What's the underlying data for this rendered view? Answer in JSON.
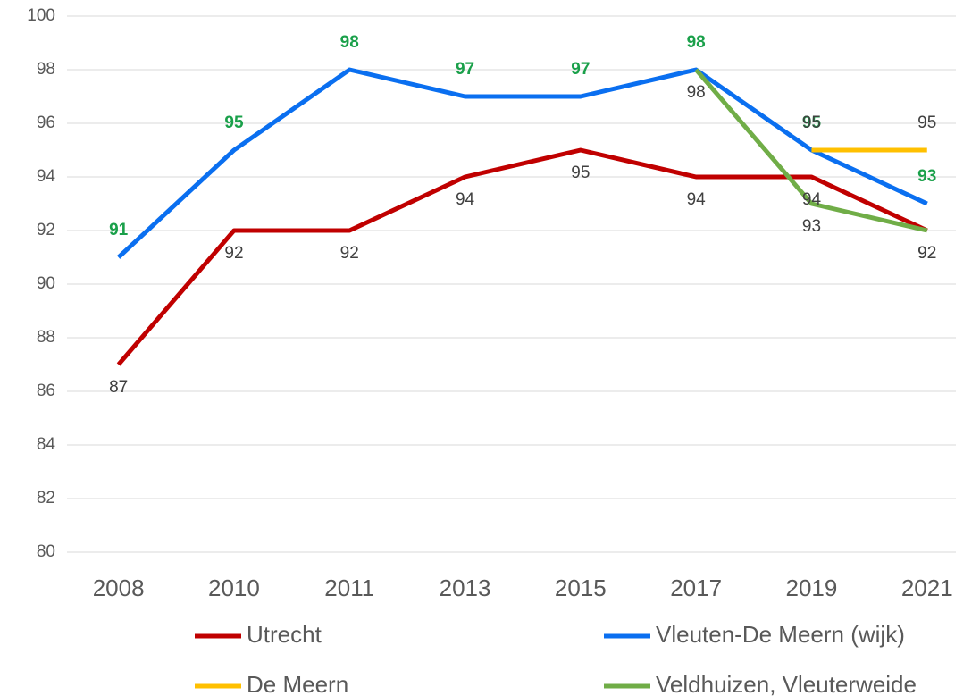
{
  "chart_data": {
    "type": "line",
    "categories": [
      "2008",
      "2010",
      "2011",
      "2013",
      "2015",
      "2017",
      "2019",
      "2021"
    ],
    "series": [
      {
        "name": "Utrecht",
        "color": "#c00000",
        "label_color": "#404040",
        "label_position": "below",
        "values": [
          87,
          92,
          92,
          94,
          95,
          94,
          94,
          92
        ]
      },
      {
        "name": "Vleuten-De Meern (wijk)",
        "color": "#0a6ff0",
        "label_color": "#1aa04a",
        "label_position": "above",
        "values": [
          91,
          95,
          98,
          97,
          97,
          98,
          95,
          93
        ]
      },
      {
        "name": "De Meern",
        "color": "#ffc000",
        "label_color": "#404040",
        "label_position": "above",
        "values": [
          null,
          null,
          null,
          null,
          null,
          null,
          95,
          95
        ]
      },
      {
        "name": "Veldhuizen, Vleuterweide",
        "color": "#70ad47",
        "label_color": "#404040",
        "label_position": "below",
        "values": [
          null,
          null,
          null,
          null,
          null,
          98,
          93,
          92
        ]
      }
    ],
    "ylim": [
      80,
      100
    ],
    "yticks": [
      80,
      82,
      84,
      86,
      88,
      90,
      92,
      94,
      96,
      98,
      100
    ],
    "grid": true,
    "legend": "bottom"
  }
}
